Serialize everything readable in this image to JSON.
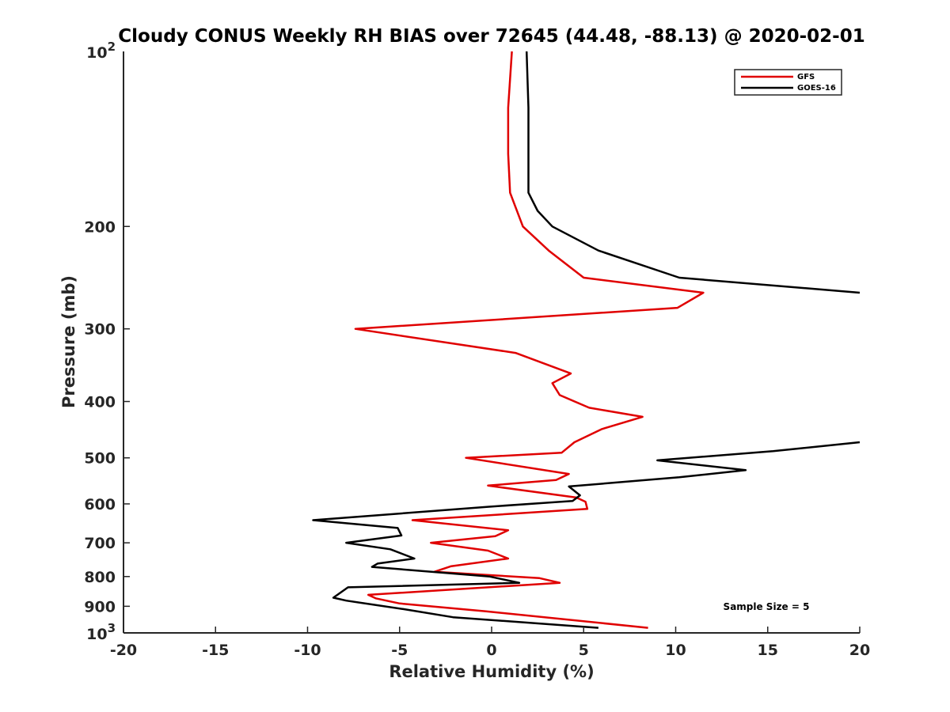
{
  "chart_data": {
    "type": "line",
    "title": "Cloudy CONUS Weekly RH BIAS over 72645 (44.48, -88.13) @ 2020-02-01",
    "xlabel": "Relative Humidity (%)",
    "ylabel": "Pressure (mb)",
    "xlim": [
      -20,
      20
    ],
    "ylim": [
      100,
      1000
    ],
    "yscale": "log",
    "y_reversed": true,
    "grid": false,
    "legend_position": "top-right",
    "x_ticks": [
      "-20",
      "-15",
      "-10",
      "-5",
      "0",
      "5",
      "10",
      "15",
      "20"
    ],
    "y_ticks": [
      {
        "value": 200,
        "label": "200"
      },
      {
        "value": 300,
        "label": "300"
      },
      {
        "value": 400,
        "label": "400"
      },
      {
        "value": 500,
        "label": "500"
      },
      {
        "value": 600,
        "label": "600"
      },
      {
        "value": 700,
        "label": "700"
      },
      {
        "value": 800,
        "label": "800"
      },
      {
        "value": 900,
        "label": "900"
      }
    ],
    "y_end_ticks": [
      {
        "value": 100,
        "base": "10",
        "exp": "2"
      },
      {
        "value": 1000,
        "base": "10",
        "exp": "3"
      }
    ],
    "annotation": "Sample Size = 5",
    "series": [
      {
        "name": "GFS",
        "color": "#e00000",
        "points": [
          [
            1.1,
            100
          ],
          [
            0.9,
            125
          ],
          [
            0.9,
            150
          ],
          [
            1.0,
            175
          ],
          [
            1.7,
            200
          ],
          [
            3.1,
            220
          ],
          [
            5.0,
            245
          ],
          [
            11.5,
            260
          ],
          [
            10.1,
            276
          ],
          [
            -7.4,
            300
          ],
          [
            1.3,
            330
          ],
          [
            4.3,
            358
          ],
          [
            3.3,
            372
          ],
          [
            3.7,
            390
          ],
          [
            5.3,
            410
          ],
          [
            8.2,
            425
          ],
          [
            6.0,
            446
          ],
          [
            4.5,
            470
          ],
          [
            3.8,
            490
          ],
          [
            -1.4,
            500
          ],
          [
            4.2,
            533
          ],
          [
            3.5,
            546
          ],
          [
            -0.2,
            558
          ],
          [
            4.6,
            585
          ],
          [
            5.1,
            595
          ],
          [
            5.2,
            612
          ],
          [
            -4.3,
            640
          ],
          [
            0.9,
            666
          ],
          [
            0.2,
            682
          ],
          [
            -3.3,
            700
          ],
          [
            -0.2,
            722
          ],
          [
            0.9,
            745
          ],
          [
            -2.2,
            768
          ],
          [
            -3.1,
            785
          ],
          [
            2.6,
            805
          ],
          [
            3.7,
            820
          ],
          [
            -6.7,
            860
          ],
          [
            -6.3,
            872
          ],
          [
            -5.0,
            890
          ],
          [
            -0.3,
            918
          ],
          [
            8.5,
            980
          ]
        ]
      },
      {
        "name": "GOES-16",
        "color": "#000000",
        "points": [
          [
            1.9,
            100
          ],
          [
            2.0,
            125
          ],
          [
            2.0,
            150
          ],
          [
            2.0,
            175
          ],
          [
            2.5,
            188
          ],
          [
            3.3,
            200
          ],
          [
            5.8,
            220
          ],
          [
            10.2,
            245
          ],
          [
            20.0,
            260
          ],
          null,
          [
            20.0,
            470
          ],
          [
            15.3,
            487
          ],
          [
            9.0,
            505
          ],
          [
            13.8,
            525
          ],
          [
            10.2,
            540
          ],
          [
            4.2,
            560
          ],
          [
            4.8,
            580
          ],
          [
            4.4,
            593
          ],
          [
            -0.2,
            607
          ],
          [
            -9.7,
            640
          ],
          [
            -5.1,
            660
          ],
          [
            -4.9,
            680
          ],
          [
            -7.9,
            700
          ],
          [
            -5.5,
            718
          ],
          [
            -4.2,
            745
          ],
          [
            -6.2,
            760
          ],
          [
            -6.5,
            770
          ],
          [
            -0.1,
            800
          ],
          [
            1.5,
            820
          ],
          [
            -7.8,
            835
          ],
          [
            -8.6,
            870
          ],
          [
            -7.9,
            880
          ],
          [
            -4.8,
            910
          ],
          [
            -2.1,
            940
          ],
          [
            5.8,
            980
          ]
        ]
      }
    ]
  }
}
